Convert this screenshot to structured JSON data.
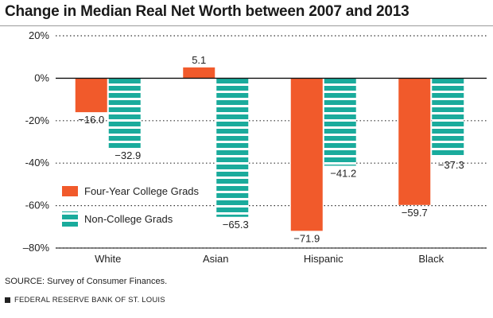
{
  "title": "Change in Median Real Net Worth between 2007 and 2013",
  "source": "SOURCE: Survey of Consumer Finances.",
  "footer": "FEDERAL RESERVE BANK OF ST. LOUIS",
  "colors": {
    "college": "#f15a2b",
    "noncollege": "#1aab9c",
    "stripe": "#ffffff",
    "grid": "#333333"
  },
  "chart_data": {
    "type": "bar",
    "title": "Change in Median Real Net Worth between 2007 and 2013",
    "xlabel": "",
    "ylabel": "",
    "categories": [
      "White",
      "Asian",
      "Hispanic",
      "Black"
    ],
    "series": [
      {
        "name": "Four-Year College Grads",
        "values": [
          -16.0,
          5.1,
          -71.9,
          -59.7
        ],
        "labels": [
          "−16.0",
          "5.1",
          "−71.9",
          "−59.7"
        ]
      },
      {
        "name": "Non-College Grads",
        "values": [
          -32.9,
          -65.3,
          -41.2,
          -37.3
        ],
        "labels": [
          "−32.9",
          "−65.3",
          "−41.2",
          "−37.3"
        ]
      }
    ],
    "ylim": [
      -80,
      20
    ],
    "yticks": [
      20,
      0,
      -20,
      -40,
      -60,
      -80
    ],
    "ytick_labels": [
      "20%",
      "0%",
      "-20%",
      "-40%",
      "-60%",
      "–80%"
    ],
    "grid": true,
    "legend": "lower-left"
  }
}
